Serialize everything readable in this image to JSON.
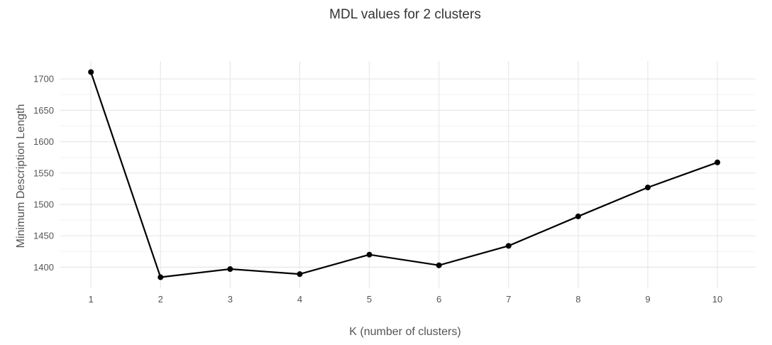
{
  "chart_data": {
    "type": "line",
    "title": "MDL values for 2 clusters",
    "xlabel": "K (number of clusters)",
    "ylabel": "Minimum Description Length",
    "x": [
      1,
      2,
      3,
      4,
      5,
      6,
      7,
      8,
      9,
      10
    ],
    "y": [
      1711,
      1384,
      1397,
      1389,
      1420,
      1403,
      1434,
      1481,
      1527,
      1567
    ],
    "xticks": [
      1,
      2,
      3,
      4,
      5,
      6,
      7,
      8,
      9,
      10
    ],
    "yticks": [
      1400,
      1450,
      1500,
      1550,
      1600,
      1650,
      1700
    ],
    "xlim": [
      0.55,
      10.55
    ],
    "ylim": [
      1366.5,
      1728.5
    ],
    "grid": true,
    "colors": {
      "line": "#000000",
      "points": "#000000",
      "grid": "#e8e8e8"
    }
  }
}
